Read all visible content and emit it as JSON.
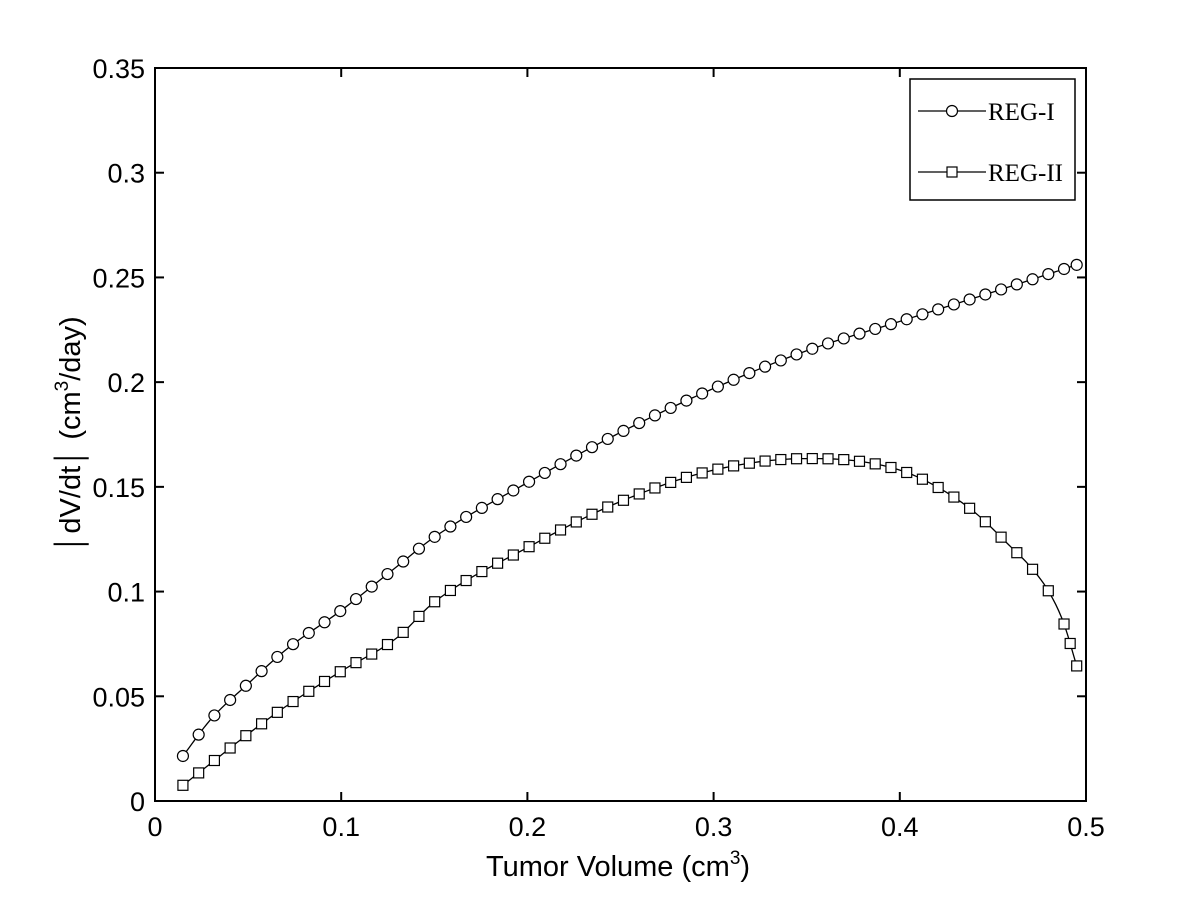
{
  "chart_data": {
    "type": "line",
    "xlabel": "Tumor Volume (cm",
    "xlabel_sup": "3",
    "xlabel_end": ")",
    "ylabel_a": "│dV/dt│ (cm",
    "ylabel_sup": "3",
    "ylabel_end": "/day)",
    "xlim": [
      0,
      0.5
    ],
    "ylim": [
      0,
      0.35
    ],
    "x_ticks": [
      0,
      0.1,
      0.2,
      0.3,
      0.4,
      0.5
    ],
    "x_tick_labels": [
      "0",
      "0.1",
      "0.2",
      "0.3",
      "0.4",
      "0.5"
    ],
    "y_ticks": [
      0,
      0.05,
      0.1,
      0.15,
      0.2,
      0.25,
      0.3,
      0.35
    ],
    "y_tick_labels": [
      "0",
      "0.05",
      "0.1",
      "0.15",
      "0.2",
      "0.25",
      "0.3",
      "0.35"
    ],
    "grid": false,
    "legend_position": "top-right",
    "series": [
      {
        "name": "REG-I",
        "marker": "circle",
        "color": "#000000",
        "points": [
          [
            0.015,
            0.0215
          ],
          [
            0.03,
            0.039
          ],
          [
            0.05,
            0.056
          ],
          [
            0.07,
            0.072
          ],
          [
            0.1,
            0.091
          ],
          [
            0.13,
            0.112
          ],
          [
            0.15,
            0.126
          ],
          [
            0.2,
            0.152
          ],
          [
            0.25,
            0.176
          ],
          [
            0.3,
            0.197
          ],
          [
            0.35,
            0.215
          ],
          [
            0.4,
            0.229
          ],
          [
            0.45,
            0.243
          ],
          [
            0.495,
            0.256
          ]
        ]
      },
      {
        "name": "REG-II",
        "marker": "square",
        "color": "#000000",
        "points": [
          [
            0.015,
            0.0075
          ],
          [
            0.03,
            0.018
          ],
          [
            0.05,
            0.032
          ],
          [
            0.07,
            0.045
          ],
          [
            0.1,
            0.062
          ],
          [
            0.13,
            0.078
          ],
          [
            0.15,
            0.095
          ],
          [
            0.2,
            0.121
          ],
          [
            0.25,
            0.143
          ],
          [
            0.3,
            0.158
          ],
          [
            0.35,
            0.1635
          ],
          [
            0.37,
            0.163
          ],
          [
            0.4,
            0.158
          ],
          [
            0.42,
            0.15
          ],
          [
            0.44,
            0.138
          ],
          [
            0.46,
            0.121
          ],
          [
            0.47,
            0.112
          ],
          [
            0.48,
            0.1
          ],
          [
            0.488,
            0.085
          ],
          [
            0.495,
            0.0645
          ]
        ]
      }
    ]
  }
}
